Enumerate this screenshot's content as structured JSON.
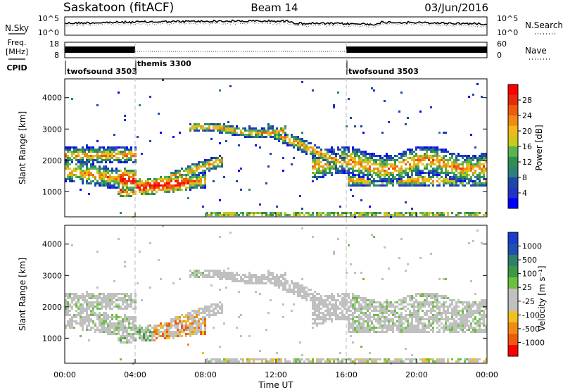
{
  "header": {
    "station": "Saskatoon (fitACF)",
    "beam": "Beam 14",
    "date": "03/Jun/2016"
  },
  "noise_panel": {
    "left_label": "N.Sky",
    "right_label": "N.Search",
    "left_ticks": [
      "10^5",
      "10^0"
    ],
    "right_ticks": [
      "10^5",
      "10^0"
    ]
  },
  "freq_panel": {
    "left_label_line1": "Freq.",
    "left_label_line2": "[MHz]",
    "left_ticks": [
      "18",
      "8"
    ],
    "right_label": "Nave",
    "right_ticks": [
      "60",
      "0"
    ]
  },
  "cpid": {
    "label": "CPID",
    "segments": [
      {
        "name": "twofsound 3503",
        "start_h": 0,
        "end_h": 4
      },
      {
        "name": "themis 3300",
        "start_h": 4,
        "end_h": 16
      },
      {
        "name": "twofsound 3503",
        "start_h": 16,
        "end_h": 24
      }
    ]
  },
  "chart_data": [
    {
      "type": "heatmap",
      "panel": "power",
      "ylabel": "Slant Range [km]",
      "yticks": [
        "1000",
        "2000",
        "3000",
        "4000"
      ],
      "ylim": [
        200,
        4600
      ],
      "xlim_hours": [
        0,
        24
      ],
      "colorbar_label": "Power [dB]",
      "colorbar_ticks": [
        "4",
        "8",
        "12",
        "16",
        "20",
        "24",
        "28"
      ],
      "colorbar_colors": [
        "#0000ff",
        "#2233cc",
        "#1a4aa6",
        "#2f7f7a",
        "#2f8f4f",
        "#5ab34c",
        "#c8c81e",
        "#f2b81a",
        "#f08a14",
        "#ee5a10",
        "#e72a0c",
        "#ff0000"
      ]
    },
    {
      "type": "heatmap",
      "panel": "velocity",
      "ylabel": "Slant Range [km]",
      "yticks": [
        "1000",
        "2000",
        "3000",
        "4000"
      ],
      "ylim": [
        200,
        4600
      ],
      "xlim_hours": [
        0,
        24
      ],
      "xticks": [
        "00:00",
        "04:00",
        "08:00",
        "12:00",
        "16:00",
        "20:00",
        "00:00"
      ],
      "xlabel": "Time UT",
      "colorbar_label": "Velocity [m s⁻¹]",
      "colorbar_ticks": [
        "1000",
        "500",
        "100",
        "25",
        "-25",
        "-100",
        "-500",
        "-1000"
      ],
      "colorbar_colors": [
        "#1a3ccc",
        "#2050b0",
        "#2f7f6a",
        "#3a9a45",
        "#6ac040",
        "#c0c0c0",
        "#c0c0c0",
        "#f0c020",
        "#f08a14",
        "#ee5a10",
        "#ff0000"
      ]
    }
  ],
  "colors": {
    "grey_scatter": "#c8c8c8",
    "ground_scatter": "#bdbdbd"
  }
}
